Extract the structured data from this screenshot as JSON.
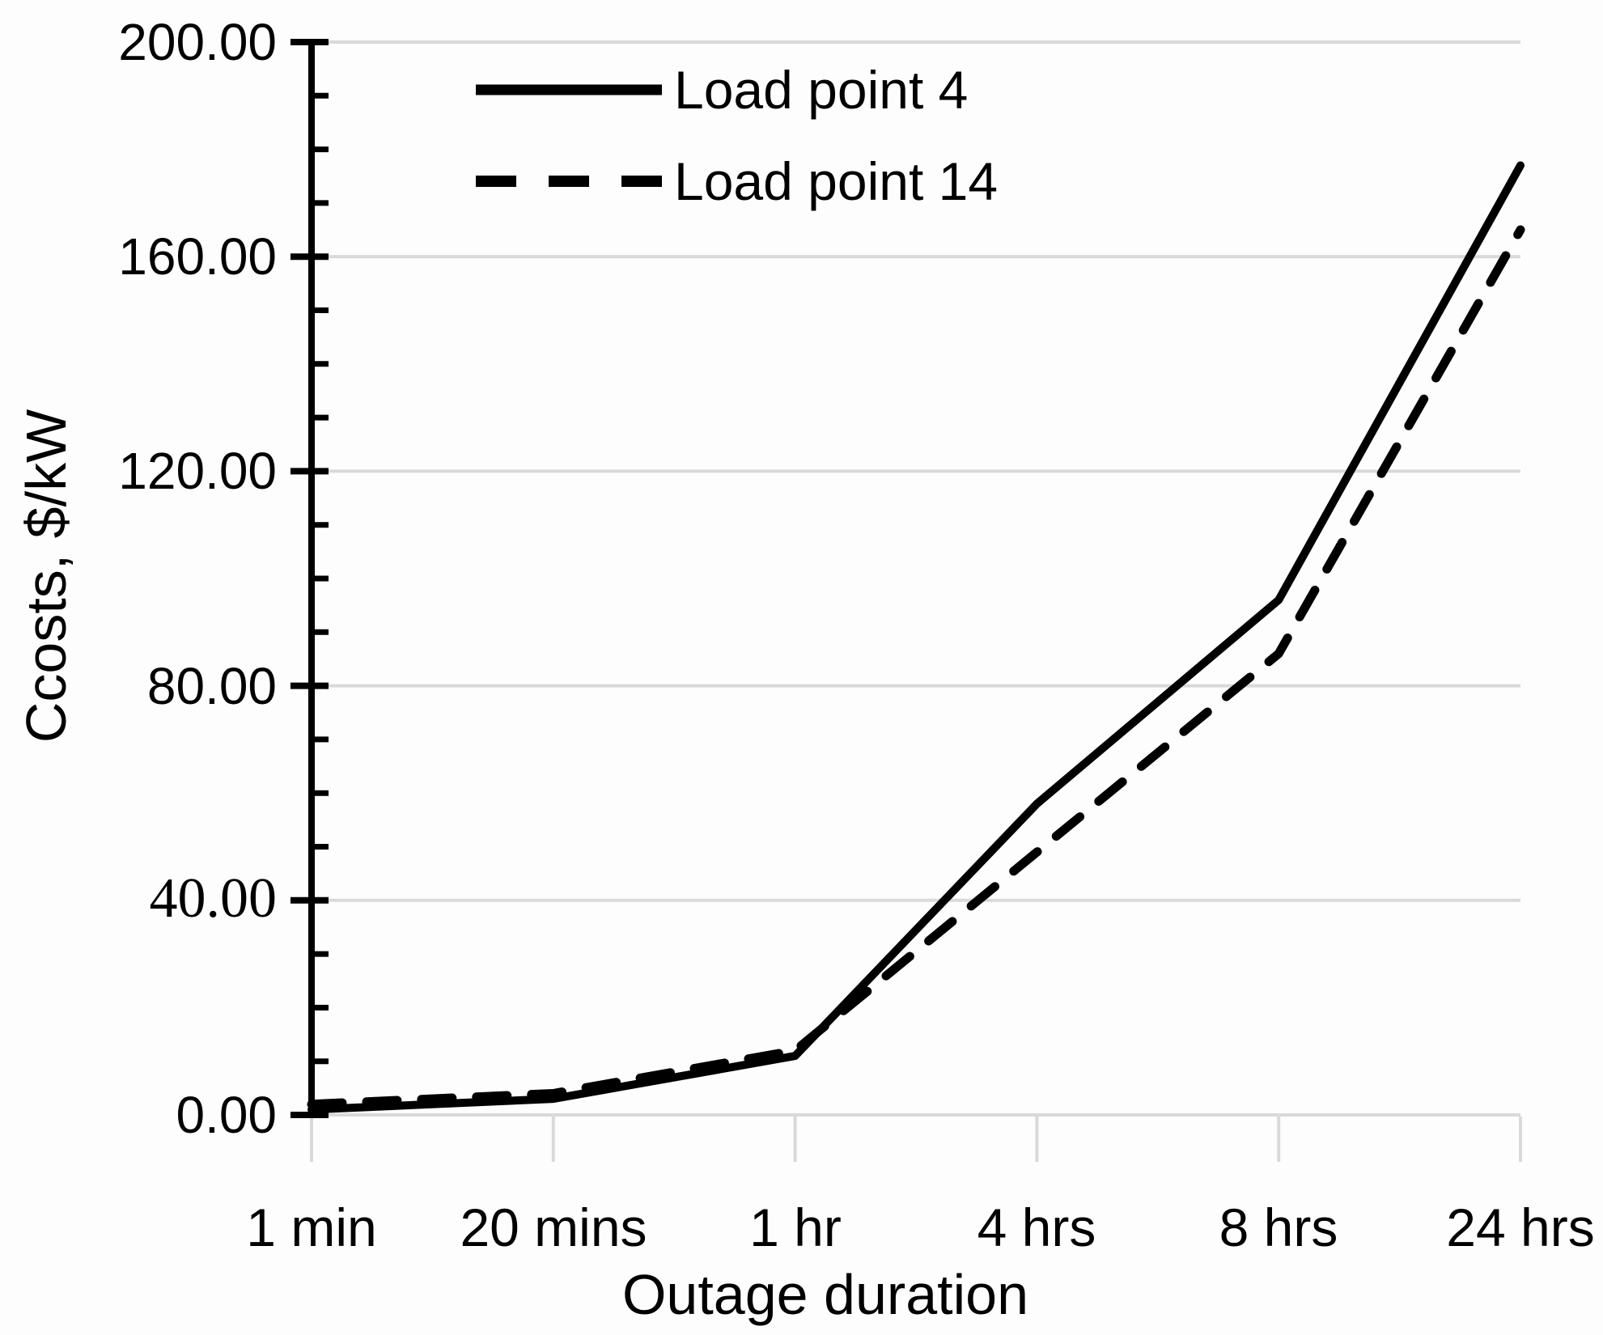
{
  "chart_data": {
    "type": "line",
    "categories": [
      "1 min",
      "20 mins",
      "1 hr",
      "4 hrs",
      "8 hrs",
      "24 hrs"
    ],
    "series": [
      {
        "name": "Load point 4",
        "style": "solid",
        "values": [
          1,
          3,
          11,
          58,
          96,
          177
        ]
      },
      {
        "name": "Load point 14",
        "style": "dashed",
        "values": [
          2,
          4,
          12,
          49,
          86,
          165
        ]
      }
    ],
    "title": "",
    "xlabel": "Outage duration",
    "ylabel": "Ccosts, $/kW",
    "ylim": [
      0,
      200
    ],
    "y_major_step": 40,
    "y_minor_step": 10,
    "y_tick_labels": [
      "200.00",
      "160.00",
      "120.00",
      "80.00",
      "40.00",
      "0.00"
    ],
    "grid": "horizontal-major",
    "legend_position": "inside-top-left",
    "line_color": "#000000",
    "grid_color": "#d9d9d9",
    "axis_color": "#000000",
    "category_tick_color": "#d9d9d9"
  }
}
